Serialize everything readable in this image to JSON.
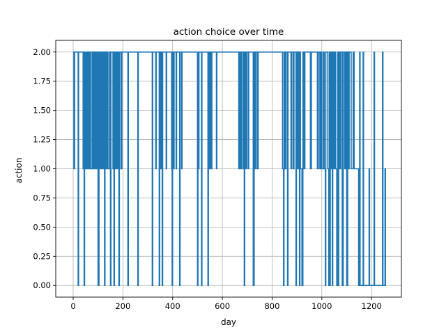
{
  "chart_data": {
    "type": "line",
    "title": "action choice over time",
    "xlabel": "day",
    "ylabel": "action",
    "xlim": [
      -70,
      1320
    ],
    "ylim": [
      -0.1,
      2.1
    ],
    "xticks": [
      0,
      200,
      400,
      600,
      800,
      1000,
      1200
    ],
    "xtick_labels": [
      "0",
      "200",
      "400",
      "600",
      "800",
      "1000",
      "1200"
    ],
    "yticks": [
      0.0,
      0.25,
      0.5,
      0.75,
      1.0,
      1.25,
      1.5,
      1.75,
      2.0
    ],
    "ytick_labels": [
      "0.00",
      "0.25",
      "0.50",
      "0.75",
      "1.00",
      "1.25",
      "1.50",
      "1.75",
      "2.00"
    ],
    "grid": true,
    "legend": null,
    "color": "#1f77b4",
    "step_changes": [
      [
        0,
        2
      ],
      [
        3,
        1
      ],
      [
        6,
        2
      ],
      [
        20,
        0
      ],
      [
        22,
        2
      ],
      [
        40,
        1
      ],
      [
        42,
        2
      ],
      [
        44,
        0
      ],
      [
        46,
        2
      ],
      [
        48,
        1
      ],
      [
        52,
        2
      ],
      [
        54,
        1
      ],
      [
        56,
        2
      ],
      [
        58,
        1
      ],
      [
        62,
        2
      ],
      [
        64,
        1
      ],
      [
        68,
        2
      ],
      [
        70,
        1
      ],
      [
        76,
        2
      ],
      [
        78,
        1
      ],
      [
        82,
        2
      ],
      [
        84,
        1
      ],
      [
        86,
        2
      ],
      [
        90,
        1
      ],
      [
        92,
        2
      ],
      [
        94,
        1
      ],
      [
        98,
        2
      ],
      [
        100,
        0
      ],
      [
        104,
        2
      ],
      [
        108,
        1
      ],
      [
        112,
        2
      ],
      [
        114,
        1
      ],
      [
        118,
        2
      ],
      [
        120,
        1
      ],
      [
        124,
        2
      ],
      [
        126,
        0
      ],
      [
        128,
        2
      ],
      [
        132,
        1
      ],
      [
        134,
        2
      ],
      [
        136,
        1
      ],
      [
        138,
        2
      ],
      [
        140,
        1
      ],
      [
        146,
        2
      ],
      [
        150,
        0
      ],
      [
        152,
        2
      ],
      [
        160,
        1
      ],
      [
        162,
        2
      ],
      [
        164,
        0
      ],
      [
        166,
        2
      ],
      [
        168,
        1
      ],
      [
        170,
        2
      ],
      [
        172,
        1
      ],
      [
        176,
        2
      ],
      [
        180,
        1
      ],
      [
        182,
        2
      ],
      [
        184,
        0
      ],
      [
        186,
        2
      ],
      [
        192,
        1
      ],
      [
        196,
        2
      ],
      [
        220,
        0
      ],
      [
        222,
        2
      ],
      [
        260,
        0
      ],
      [
        262,
        2
      ],
      [
        318,
        0
      ],
      [
        320,
        2
      ],
      [
        332,
        1
      ],
      [
        334,
        2
      ],
      [
        346,
        0
      ],
      [
        348,
        2
      ],
      [
        352,
        1
      ],
      [
        354,
        2
      ],
      [
        358,
        0
      ],
      [
        360,
        2
      ],
      [
        374,
        1
      ],
      [
        376,
        2
      ],
      [
        396,
        1
      ],
      [
        398,
        0
      ],
      [
        400,
        2
      ],
      [
        404,
        1
      ],
      [
        406,
        2
      ],
      [
        414,
        1
      ],
      [
        416,
        2
      ],
      [
        428,
        0
      ],
      [
        430,
        2
      ],
      [
        436,
        1
      ],
      [
        438,
        2
      ],
      [
        500,
        0
      ],
      [
        502,
        2
      ],
      [
        504,
        1
      ],
      [
        506,
        2
      ],
      [
        516,
        0
      ],
      [
        518,
        2
      ],
      [
        542,
        0
      ],
      [
        544,
        2
      ],
      [
        546,
        1
      ],
      [
        548,
        2
      ],
      [
        550,
        1
      ],
      [
        552,
        2
      ],
      [
        554,
        1
      ],
      [
        558,
        2
      ],
      [
        576,
        1
      ],
      [
        578,
        2
      ],
      [
        666,
        1
      ],
      [
        670,
        2
      ],
      [
        672,
        1
      ],
      [
        676,
        2
      ],
      [
        682,
        1
      ],
      [
        684,
        2
      ],
      [
        688,
        0
      ],
      [
        690,
        2
      ],
      [
        694,
        1
      ],
      [
        698,
        2
      ],
      [
        704,
        1
      ],
      [
        706,
        2
      ],
      [
        724,
        0
      ],
      [
        728,
        2
      ],
      [
        730,
        1
      ],
      [
        734,
        2
      ],
      [
        740,
        1
      ],
      [
        744,
        2
      ],
      [
        842,
        1
      ],
      [
        846,
        0
      ],
      [
        848,
        2
      ],
      [
        852,
        1
      ],
      [
        856,
        2
      ],
      [
        862,
        0
      ],
      [
        864,
        2
      ],
      [
        876,
        1
      ],
      [
        878,
        2
      ],
      [
        884,
        1
      ],
      [
        888,
        2
      ],
      [
        896,
        0
      ],
      [
        898,
        2
      ],
      [
        902,
        1
      ],
      [
        906,
        2
      ],
      [
        910,
        0
      ],
      [
        912,
        2
      ],
      [
        914,
        1
      ],
      [
        920,
        0
      ],
      [
        924,
        2
      ],
      [
        928,
        1
      ],
      [
        932,
        2
      ],
      [
        954,
        1
      ],
      [
        958,
        2
      ],
      [
        982,
        1
      ],
      [
        986,
        2
      ],
      [
        992,
        1
      ],
      [
        996,
        2
      ],
      [
        1000,
        1
      ],
      [
        1006,
        2
      ],
      [
        1010,
        1
      ],
      [
        1014,
        0
      ],
      [
        1016,
        2
      ],
      [
        1024,
        1
      ],
      [
        1028,
        0
      ],
      [
        1030,
        2
      ],
      [
        1032,
        0
      ],
      [
        1034,
        2
      ],
      [
        1036,
        1
      ],
      [
        1040,
        2
      ],
      [
        1042,
        0
      ],
      [
        1044,
        2
      ],
      [
        1048,
        1
      ],
      [
        1052,
        2
      ],
      [
        1056,
        1
      ],
      [
        1060,
        0
      ],
      [
        1064,
        2
      ],
      [
        1066,
        0
      ],
      [
        1068,
        2
      ],
      [
        1072,
        1
      ],
      [
        1076,
        2
      ],
      [
        1082,
        0
      ],
      [
        1086,
        2
      ],
      [
        1092,
        1
      ],
      [
        1096,
        2
      ],
      [
        1100,
        0
      ],
      [
        1104,
        2
      ],
      [
        1106,
        1
      ],
      [
        1110,
        2
      ],
      [
        1118,
        1
      ],
      [
        1126,
        2
      ],
      [
        1130,
        1
      ],
      [
        1148,
        0
      ],
      [
        1152,
        2
      ],
      [
        1154,
        0
      ],
      [
        1166,
        2
      ],
      [
        1168,
        0
      ],
      [
        1190,
        1
      ],
      [
        1192,
        0
      ],
      [
        1210,
        2
      ],
      [
        1212,
        0
      ],
      [
        1244,
        2
      ],
      [
        1246,
        0
      ],
      [
        1254,
        1
      ],
      [
        1256,
        0
      ]
    ],
    "x_end": 1258
  }
}
